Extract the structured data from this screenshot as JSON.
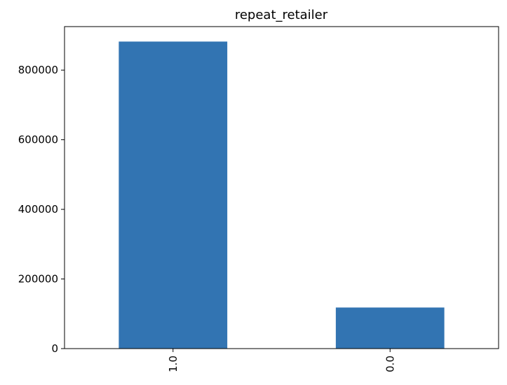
{
  "chart_data": {
    "type": "bar",
    "title": "repeat_retailer",
    "categories": [
      "1.0",
      "0.0"
    ],
    "values": [
      882000,
      118000
    ],
    "xlabel": "",
    "ylabel": "",
    "ylim": [
      0,
      925000
    ],
    "yticks": [
      0,
      200000,
      400000,
      600000,
      800000
    ],
    "ytick_labels": [
      "0",
      "200000",
      "400000",
      "600000",
      "800000"
    ],
    "bar_color": "#3274b2",
    "grid": false,
    "legend": "none"
  }
}
